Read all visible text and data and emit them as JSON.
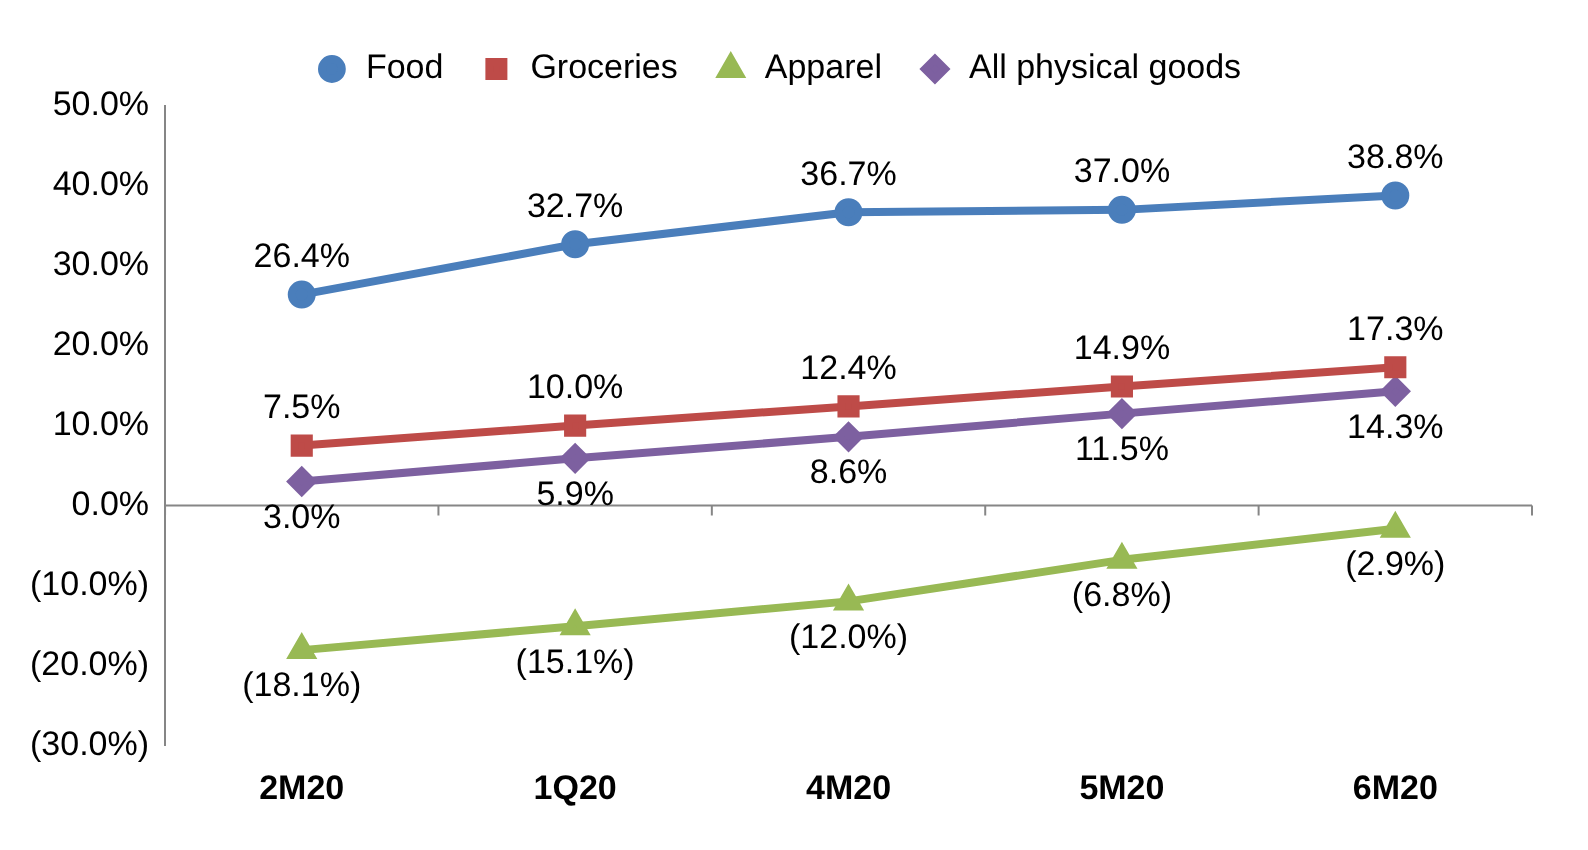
{
  "chart_data": {
    "type": "line",
    "categories": [
      "2M20",
      "1Q20",
      "4M20",
      "5M20",
      "6M20"
    ],
    "series": [
      {
        "name": "Food",
        "color": "#4a7ebb",
        "marker": "circle",
        "values": [
          26.4,
          32.7,
          36.7,
          37.0,
          38.8
        ],
        "value_labels": [
          "26.4%",
          "32.7%",
          "36.7%",
          "37.0%",
          "38.8%"
        ]
      },
      {
        "name": "Groceries",
        "color": "#be4b48",
        "marker": "square",
        "values": [
          7.5,
          10.0,
          12.4,
          14.9,
          17.3
        ],
        "value_labels": [
          "7.5%",
          "10.0%",
          "12.4%",
          "14.9%",
          "17.3%"
        ]
      },
      {
        "name": "Apparel",
        "color": "#98b954",
        "marker": "triangle",
        "values": [
          -18.1,
          -15.1,
          -12.0,
          -6.8,
          -2.9
        ],
        "value_labels": [
          "(18.1%)",
          "(15.1%)",
          "(12.0%)",
          "(6.8%)",
          "(2.9%)"
        ]
      },
      {
        "name": "All physical goods",
        "color": "#7d60a0",
        "marker": "diamond",
        "values": [
          3.0,
          5.9,
          8.6,
          11.5,
          14.3
        ],
        "value_labels": [
          "3.0%",
          "5.9%",
          "8.6%",
          "11.5%",
          "14.3%"
        ]
      }
    ],
    "ylim": [
      -30,
      50
    ],
    "yticks": [
      {
        "value": -30,
        "label": "(30.0%)"
      },
      {
        "value": -20,
        "label": "(20.0%)"
      },
      {
        "value": -10,
        "label": "(10.0%)"
      },
      {
        "value": 0,
        "label": "0.0%"
      },
      {
        "value": 10,
        "label": "10.0%"
      },
      {
        "value": 20,
        "label": "20.0%"
      },
      {
        "value": 30,
        "label": "30.0%"
      },
      {
        "value": 40,
        "label": "40.0%"
      },
      {
        "value": 50,
        "label": "50.0%"
      }
    ],
    "ref_lines": [
      {
        "axis": "y",
        "value": 0,
        "color": "#868686"
      }
    ],
    "grid": false,
    "legend": "top"
  }
}
